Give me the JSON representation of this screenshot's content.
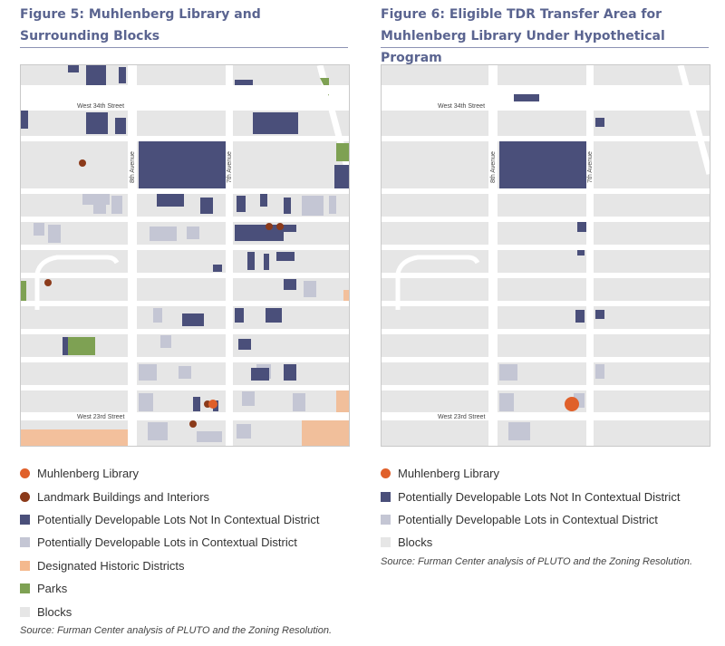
{
  "left": {
    "title_line1": "Figure 5: Muhlenberg Library and",
    "title_line2": "Surrounding Blocks",
    "street_labels": {
      "w34": "West 34th Street",
      "w23": "West 23rd Street",
      "av8": "8th Avenue",
      "av7": "7th Avenue"
    },
    "legend": [
      {
        "label": "Muhlenberg Library",
        "color": "#e0602a",
        "shape": "circle"
      },
      {
        "label": "Landmark Buildings and Interiors",
        "color": "#8b3a1a",
        "shape": "circle"
      },
      {
        "label": "Potentially Developable Lots Not In Contextual District",
        "color": "#4a4f7a",
        "shape": "square"
      },
      {
        "label": "Potentially Developable Lots in Contextual District",
        "color": "#c4c6d4",
        "shape": "square"
      },
      {
        "label": "Designated Historic Districts",
        "color": "#f4b98e",
        "shape": "square"
      },
      {
        "label": "Parks",
        "color": "#7ea153",
        "shape": "square"
      },
      {
        "label": "Blocks",
        "color": "#e6e6e6",
        "shape": "square"
      }
    ],
    "source": "Source: Furman Center analysis of PLUTO and the Zoning Resolution."
  },
  "right": {
    "title_line1": "Figure 6: Eligible TDR Transfer Area for",
    "title_line2": "Muhlenberg Library Under Hypothetical Program",
    "street_labels": {
      "w34": "West 34th Street",
      "w23": "West 23rd Street",
      "av8": "8th Avenue",
      "av7": "7th Avenue"
    },
    "legend": [
      {
        "label": "Muhlenberg Library",
        "color": "#e0602a",
        "shape": "circle"
      },
      {
        "label": "Potentially Developable Lots Not In Contextual District",
        "color": "#4a4f7a",
        "shape": "square"
      },
      {
        "label": "Potentially Developable Lots in Contextual District",
        "color": "#c4c6d4",
        "shape": "square"
      },
      {
        "label": "Blocks",
        "color": "#e6e6e6",
        "shape": "square"
      }
    ],
    "source": "Source: Furman Center analysis of PLUTO and the Zoning Resolution."
  }
}
